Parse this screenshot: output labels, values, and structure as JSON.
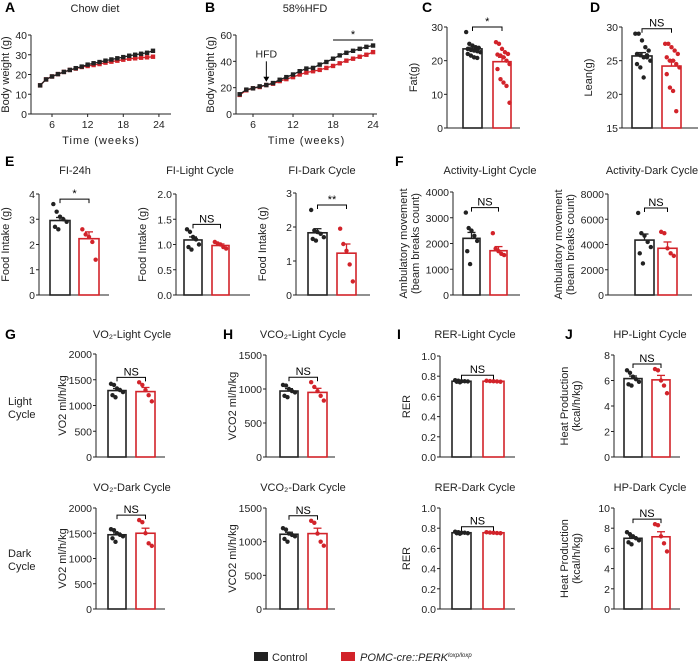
{
  "colors": {
    "control": "#222222",
    "mutant": "#d2232a"
  },
  "legend": {
    "control": "Control",
    "mutant_main": "POMC-cre::PERK",
    "mutant_sup": "loxp/loxp"
  },
  "row_labels": {
    "light": [
      "Light",
      "Cycle"
    ],
    "dark": [
      "Dark",
      "Cycle"
    ]
  },
  "chart_data": [
    {
      "id": "A",
      "letter": "A",
      "type": "line",
      "title": "Chow diet",
      "xlabel": "Time (weeks)",
      "ylabel": "Body weight (g)",
      "xticks": [
        6,
        12,
        18,
        24
      ],
      "yticks": [
        0,
        10,
        20,
        30,
        40
      ],
      "ylim": [
        0,
        40
      ],
      "series": [
        {
          "name": "Control",
          "x": [
            4,
            5,
            6,
            7,
            8,
            9,
            10,
            11,
            12,
            13,
            14,
            15,
            16,
            17,
            18,
            19,
            20,
            21,
            22,
            23
          ],
          "values": [
            14.5,
            17.5,
            19,
            20.2,
            21.3,
            22.3,
            23.2,
            24,
            25,
            25.7,
            26.3,
            27,
            27.6,
            28.2,
            28.8,
            29.5,
            30,
            30.5,
            31,
            32
          ]
        },
        {
          "name": "POMC-cre::PERK loxp/loxp",
          "x": [
            4,
            5,
            6,
            7,
            8,
            9,
            10,
            11,
            12,
            13,
            14,
            15,
            16,
            17,
            18,
            19,
            20,
            21,
            22,
            23
          ],
          "values": [
            14.5,
            17.5,
            19,
            20.2,
            21.3,
            22.3,
            23,
            23.8,
            24.3,
            24.8,
            25.3,
            26,
            26.5,
            27,
            27.5,
            28,
            28.2,
            28.5,
            28.7,
            29
          ]
        }
      ]
    },
    {
      "id": "B",
      "letter": "B",
      "type": "line",
      "title": "58%HFD",
      "xlabel": "Time (weeks)",
      "ylabel": "Body weight (g)",
      "xticks": [
        6,
        12,
        18,
        24
      ],
      "yticks": [
        0,
        20,
        40,
        60
      ],
      "ylim": [
        0,
        60
      ],
      "annotation": "HFD",
      "annotation_x": 8,
      "sig": "*",
      "sig_range": [
        18,
        24
      ],
      "series": [
        {
          "name": "Control",
          "x": [
            4,
            5,
            6,
            7,
            8,
            9,
            10,
            11,
            12,
            13,
            14,
            15,
            16,
            17,
            18,
            19,
            20,
            21,
            22,
            23,
            24
          ],
          "values": [
            15,
            18.5,
            19.5,
            21,
            22,
            23.5,
            26,
            28,
            30,
            32.5,
            34.5,
            35,
            37.5,
            39.5,
            42,
            44.5,
            46.5,
            48,
            49.5,
            51,
            52
          ]
        },
        {
          "name": "POMC-cre::PERK loxp/loxp",
          "x": [
            4,
            5,
            6,
            7,
            8,
            9,
            10,
            11,
            12,
            13,
            14,
            15,
            16,
            17,
            18,
            19,
            20,
            21,
            22,
            23,
            24
          ],
          "values": [
            14.5,
            18,
            19.5,
            20.5,
            22,
            23,
            25,
            26.5,
            28,
            30,
            31.5,
            32.5,
            33.5,
            35,
            36.5,
            38.5,
            40.5,
            42,
            43.5,
            45,
            47
          ]
        }
      ]
    },
    {
      "id": "C",
      "letter": "C",
      "type": "bar",
      "title": "",
      "ylabel": [
        "Fat(g)"
      ],
      "yticks": [
        "0",
        "10",
        "20",
        "30"
      ],
      "ylim": [
        0,
        30
      ],
      "sig": "*",
      "control": {
        "mean": 23.5,
        "sem": 0.5,
        "points": [
          28.5,
          25,
          24.5,
          24,
          23.8,
          23.5,
          23.2,
          23,
          22.8,
          22.5,
          22,
          21.5,
          21,
          20.8
        ]
      },
      "mutant": {
        "mean": 19.7,
        "sem": 1.3,
        "points": [
          25.5,
          25,
          23.5,
          22.5,
          22,
          21.8,
          21.5,
          21,
          20,
          19,
          17.5,
          14.5,
          13.5,
          12.5,
          7.5
        ]
      }
    },
    {
      "id": "D",
      "letter": "D",
      "type": "bar",
      "title": "",
      "ylabel": [
        "Lean(g)"
      ],
      "yticks": [
        "15",
        "20",
        "25",
        "30"
      ],
      "ylim": [
        15,
        30
      ],
      "sig": "NS",
      "control": {
        "mean": 25.7,
        "sem": 0.5,
        "points": [
          29,
          29,
          28,
          27,
          26.5,
          26,
          25.8,
          25.5,
          25.5,
          25,
          24.5,
          24,
          22.5,
          25.8
        ]
      },
      "mutant": {
        "mean": 24.2,
        "sem": 0.8,
        "points": [
          27.5,
          27.5,
          27,
          26.5,
          26,
          25.5,
          25,
          25,
          24.5,
          24,
          23,
          21,
          20.5,
          17.5
        ]
      }
    },
    {
      "id": "E1",
      "letter": "E",
      "type": "bar",
      "title": "FI-24h",
      "ylabel": [
        "Food Intake (g)"
      ],
      "yticks": [
        "0",
        "1",
        "2",
        "3",
        "4"
      ],
      "ylim": [
        0,
        4
      ],
      "sig": "*",
      "control": {
        "mean": 2.95,
        "sem": 0.12,
        "points": [
          3.6,
          3.3,
          3.1,
          3.0,
          2.9,
          2.7,
          2.6
        ]
      },
      "mutant": {
        "mean": 2.23,
        "sem": 0.27,
        "points": [
          2.6,
          2.4,
          2.3,
          2.1,
          1.4
        ]
      }
    },
    {
      "id": "E2",
      "letter": "",
      "type": "bar",
      "title": "FI-Light Cycle",
      "ylabel": [
        "Food Intake (g)"
      ],
      "yticks": [
        "0.0",
        "0.5",
        "1.0",
        "1.5",
        "2.0"
      ],
      "ylim": [
        0,
        2
      ],
      "sig": "NS",
      "control": {
        "mean": 1.09,
        "sem": 0.06,
        "points": [
          1.3,
          1.25,
          1.15,
          1.1,
          1.0,
          0.95,
          0.9
        ]
      },
      "mutant": {
        "mean": 0.98,
        "sem": 0.03,
        "points": [
          1.05,
          1.02,
          1.0,
          0.95,
          0.92
        ]
      }
    },
    {
      "id": "E3",
      "letter": "",
      "type": "bar",
      "title": "FI-Dark Cycle",
      "ylabel": [
        "Food Intake (g)"
      ],
      "yticks": [
        "0",
        "1",
        "2",
        "3"
      ],
      "ylim": [
        0,
        3
      ],
      "sig": "**",
      "control": {
        "mean": 1.83,
        "sem": 0.12,
        "points": [
          2.5,
          1.9,
          1.85,
          1.8,
          1.7,
          1.65,
          1.6
        ]
      },
      "mutant": {
        "mean": 1.23,
        "sem": 0.27,
        "points": [
          1.95,
          1.5,
          1.3,
          0.9,
          0.4
        ]
      }
    },
    {
      "id": "F1",
      "letter": "F",
      "type": "bar",
      "title": "Activity-Light Cycle",
      "ylabel": [
        "Ambulatory movement",
        "(beam breaks count)"
      ],
      "yticks": [
        "0",
        "1000",
        "2000",
        "3000",
        "4000"
      ],
      "ylim": [
        0,
        4000
      ],
      "sig": "NS",
      "control": {
        "mean": 2200,
        "sem": 230,
        "points": [
          3200,
          2600,
          2500,
          2300,
          2100,
          1700,
          1200
        ]
      },
      "mutant": {
        "mean": 1720,
        "sem": 160,
        "points": [
          2400,
          1800,
          1700,
          1600,
          1550
        ]
      }
    },
    {
      "id": "F2",
      "letter": "",
      "type": "bar",
      "title": "Activity-Dark Cycle",
      "ylabel": [
        "Ambulatory movement",
        "(beam breaks count)"
      ],
      "yticks": [
        "0",
        "2000",
        "4000",
        "6000",
        "8000"
      ],
      "ylim": [
        0,
        8000
      ],
      "sig": "NS",
      "control": {
        "mean": 4350,
        "sem": 480,
        "points": [
          6500,
          4900,
          4700,
          4200,
          3800,
          3300,
          2500
        ]
      },
      "mutant": {
        "mean": 3700,
        "sem": 500,
        "points": [
          5000,
          4900,
          3700,
          3300,
          3100
        ]
      }
    },
    {
      "id": "G1",
      "letter": "G",
      "type": "bar",
      "title": "VO₂-Light Cycle",
      "ylabel": [
        "VO2 ml/h/kg"
      ],
      "yticks": [
        "0",
        "500",
        "1000",
        "1500",
        "2000"
      ],
      "ylim": [
        0,
        2000
      ],
      "sig": "NS",
      "control": {
        "mean": 1290,
        "sem": 40,
        "points": [
          1420,
          1400,
          1330,
          1300,
          1260,
          1200,
          1160
        ]
      },
      "mutant": {
        "mean": 1270,
        "sem": 80,
        "points": [
          1450,
          1400,
          1300,
          1200,
          1080
        ]
      }
    },
    {
      "id": "H1",
      "letter": "H",
      "type": "bar",
      "title": "VCO₂-Light Cycle",
      "ylabel": [
        "VCO2 ml/h/kg"
      ],
      "yticks": [
        "0",
        "500",
        "1000",
        "1500"
      ],
      "ylim": [
        0,
        1500
      ],
      "sig": "NS",
      "control": {
        "mean": 970,
        "sem": 35,
        "points": [
          1060,
          1050,
          1000,
          970,
          950,
          900,
          880
        ]
      },
      "mutant": {
        "mean": 950,
        "sem": 60,
        "points": [
          1100,
          1030,
          970,
          900,
          830
        ]
      }
    },
    {
      "id": "I1",
      "letter": "I",
      "type": "bar",
      "title": "RER-Light Cycle",
      "ylabel": [
        "RER"
      ],
      "yticks": [
        "0.0",
        "0.2",
        "0.4",
        "0.6",
        "0.8",
        "1.0"
      ],
      "ylim": [
        0,
        1
      ],
      "sig": "NS",
      "control": {
        "mean": 0.75,
        "sem": 0.005,
        "points": [
          0.76,
          0.755,
          0.75,
          0.75,
          0.748,
          0.745,
          0.74
        ]
      },
      "mutant": {
        "mean": 0.75,
        "sem": 0.003,
        "points": [
          0.755,
          0.752,
          0.75,
          0.748,
          0.745
        ]
      }
    },
    {
      "id": "J1",
      "letter": "J",
      "type": "bar",
      "title": "HP-Light Cycle",
      "ylabel": [
        "Heat Production",
        "(kcal/h/kg)"
      ],
      "yticks": [
        "0",
        "2",
        "4",
        "6",
        "8"
      ],
      "ylim": [
        0,
        8
      ],
      "sig": "NS",
      "control": {
        "mean": 6.15,
        "sem": 0.2,
        "points": [
          6.8,
          6.6,
          6.3,
          6.1,
          5.9,
          5.7,
          5.6
        ]
      },
      "mutant": {
        "mean": 6.05,
        "sem": 0.35,
        "points": [
          6.9,
          6.8,
          6.0,
          5.6,
          5.0
        ]
      }
    },
    {
      "id": "G2",
      "letter": "",
      "type": "bar",
      "title": "VO₂-Dark Cycle",
      "ylabel": [
        "VO2 ml/h/kg"
      ],
      "yticks": [
        "0",
        "500",
        "1000",
        "1500",
        "2000"
      ],
      "ylim": [
        0,
        2000
      ],
      "sig": "NS",
      "control": {
        "mean": 1470,
        "sem": 35,
        "points": [
          1580,
          1560,
          1500,
          1470,
          1440,
          1400,
          1330
        ]
      },
      "mutant": {
        "mean": 1500,
        "sem": 100,
        "points": [
          1760,
          1720,
          1500,
          1300,
          1250
        ]
      }
    },
    {
      "id": "H2",
      "letter": "",
      "type": "bar",
      "title": "VCO₂-Dark Cycle",
      "ylabel": [
        "VCO2 ml/h/kg"
      ],
      "yticks": [
        "0",
        "500",
        "1000",
        "1500"
      ],
      "ylim": [
        0,
        1500
      ],
      "sig": "NS",
      "control": {
        "mean": 1110,
        "sem": 30,
        "points": [
          1200,
          1180,
          1120,
          1100,
          1080,
          1040,
          1000
        ]
      },
      "mutant": {
        "mean": 1120,
        "sem": 80,
        "points": [
          1310,
          1280,
          1120,
          1000,
          940
        ]
      }
    },
    {
      "id": "I2",
      "letter": "",
      "type": "bar",
      "title": "RER-Dark Cycle",
      "ylabel": [
        "RER"
      ],
      "yticks": [
        "0.0",
        "0.2",
        "0.4",
        "0.6",
        "0.8",
        "1.0"
      ],
      "ylim": [
        0,
        1
      ],
      "sig": "NS",
      "control": {
        "mean": 0.755,
        "sem": 0.004,
        "points": [
          0.765,
          0.76,
          0.755,
          0.755,
          0.75,
          0.75,
          0.745
        ]
      },
      "mutant": {
        "mean": 0.755,
        "sem": 0.003,
        "points": [
          0.76,
          0.757,
          0.755,
          0.752,
          0.75
        ]
      }
    },
    {
      "id": "J2",
      "letter": "",
      "type": "bar",
      "title": "HP-Dark Cycle",
      "ylabel": [
        "Heat Production",
        "(kcal/h/kg)"
      ],
      "yticks": [
        "0",
        "2",
        "4",
        "6",
        "8",
        "10"
      ],
      "ylim": [
        0,
        10
      ],
      "sig": "NS",
      "control": {
        "mean": 7.0,
        "sem": 0.15,
        "points": [
          7.6,
          7.4,
          7.2,
          7.0,
          6.8,
          6.6,
          6.4
        ]
      },
      "mutant": {
        "mean": 7.15,
        "sem": 0.5,
        "points": [
          8.4,
          8.3,
          7.2,
          6.5,
          5.7
        ]
      }
    }
  ]
}
